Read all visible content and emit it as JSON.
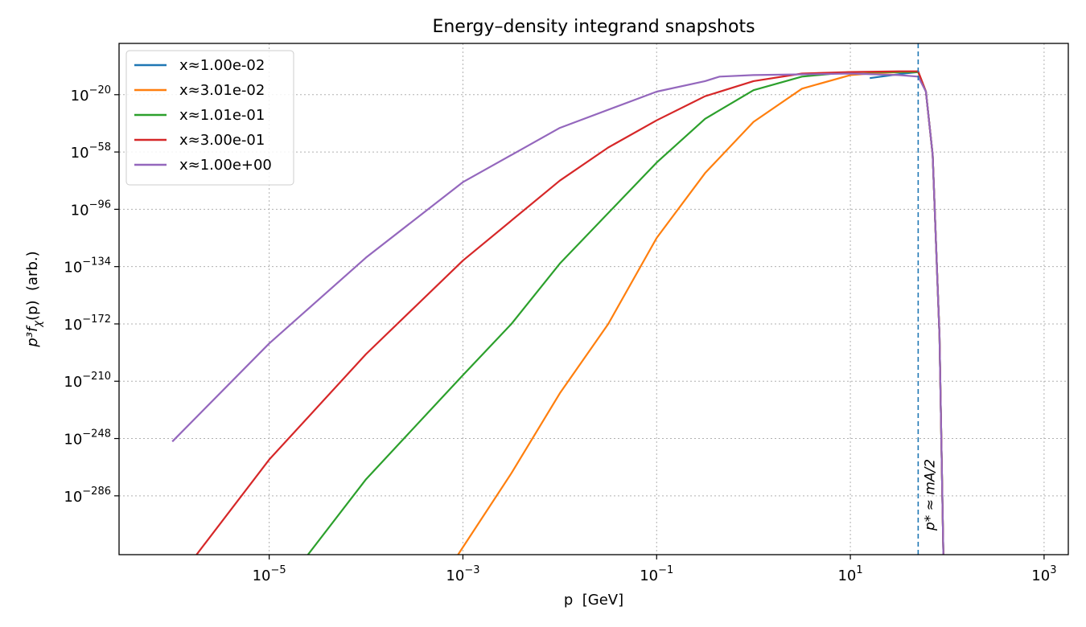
{
  "chart_data": {
    "type": "line",
    "title": "Energy–density integrand snapshots",
    "xlabel": "p  [GeV]",
    "ylabel_main": "p³f",
    "ylabel_sub": "χ",
    "ylabel_tail": "(p)  (arb.)",
    "xscale": "log",
    "yscale": "log",
    "x_log10_range": [
      -6.55,
      3.25
    ],
    "y_log10_range": [
      -325,
      14
    ],
    "grid": true,
    "legend_placement": "upper-left",
    "x_ticks": [
      {
        "base": "10",
        "exp": "−5",
        "log10": -5
      },
      {
        "base": "10",
        "exp": "−3",
        "log10": -3
      },
      {
        "base": "10",
        "exp": "−1",
        "log10": -1
      },
      {
        "base": "10",
        "exp": "1",
        "log10": 1
      },
      {
        "base": "10",
        "exp": "3",
        "log10": 3
      }
    ],
    "y_ticks": [
      {
        "base": "10",
        "exp": "−20",
        "log10": -20
      },
      {
        "base": "10",
        "exp": "−58",
        "log10": -58
      },
      {
        "base": "10",
        "exp": "−96",
        "log10": -96
      },
      {
        "base": "10",
        "exp": "−134",
        "log10": -134
      },
      {
        "base": "10",
        "exp": "−172",
        "log10": -172
      },
      {
        "base": "10",
        "exp": "−210",
        "log10": -210
      },
      {
        "base": "10",
        "exp": "−248",
        "log10": -248
      },
      {
        "base": "10",
        "exp": "−286",
        "log10": -286
      }
    ],
    "vline": {
      "log10_x": 1.7,
      "label": "p* ≈ mA/2",
      "color": "#1f77b4"
    },
    "series": [
      {
        "name": "x≈1.00e-02",
        "color": "#1f77b4",
        "points": [
          [
            1.2,
            -9
          ],
          [
            1.55,
            -6
          ],
          [
            1.7,
            -5
          ],
          [
            1.78,
            -18
          ],
          [
            1.85,
            -60
          ],
          [
            1.92,
            -180
          ],
          [
            1.96,
            -325
          ]
        ]
      },
      {
        "name": "x≈3.01e-02",
        "color": "#ff7f0e",
        "points": [
          [
            -3.05,
            -325
          ],
          [
            -2.5,
            -271
          ],
          [
            -2.0,
            -218
          ],
          [
            -1.5,
            -172
          ],
          [
            -1.0,
            -115
          ],
          [
            -0.5,
            -72
          ],
          [
            0.0,
            -38
          ],
          [
            0.5,
            -16
          ],
          [
            1.0,
            -7
          ],
          [
            1.3,
            -5.5
          ],
          [
            1.55,
            -5
          ],
          [
            1.7,
            -5
          ],
          [
            1.78,
            -18
          ],
          [
            1.85,
            -60
          ],
          [
            1.92,
            -180
          ],
          [
            1.96,
            -325
          ]
        ]
      },
      {
        "name": "x≈1.01e-01",
        "color": "#2ca02c",
        "points": [
          [
            -4.6,
            -325
          ],
          [
            -4.0,
            -275
          ],
          [
            -3.0,
            -206
          ],
          [
            -2.5,
            -172
          ],
          [
            -2.0,
            -132
          ],
          [
            -1.0,
            -65
          ],
          [
            -0.5,
            -36
          ],
          [
            0.0,
            -17
          ],
          [
            0.5,
            -8
          ],
          [
            1.0,
            -5
          ],
          [
            1.5,
            -5
          ],
          [
            1.7,
            -5
          ],
          [
            1.78,
            -18
          ],
          [
            1.85,
            -60
          ],
          [
            1.92,
            -180
          ],
          [
            1.96,
            -325
          ]
        ]
      },
      {
        "name": "x≈3.00e-01",
        "color": "#d62728",
        "points": [
          [
            -5.75,
            -325
          ],
          [
            -5.0,
            -262
          ],
          [
            -4.0,
            -192
          ],
          [
            -3.0,
            -130
          ],
          [
            -2.0,
            -77
          ],
          [
            -1.5,
            -55
          ],
          [
            -1.0,
            -37
          ],
          [
            -0.5,
            -21
          ],
          [
            0.0,
            -11
          ],
          [
            0.5,
            -6
          ],
          [
            1.0,
            -5
          ],
          [
            1.5,
            -4.5
          ],
          [
            1.7,
            -4.5
          ],
          [
            1.78,
            -18
          ],
          [
            1.85,
            -60
          ],
          [
            1.92,
            -180
          ],
          [
            1.96,
            -325
          ]
        ]
      },
      {
        "name": "x≈1.00e+00",
        "color": "#9467bd",
        "points": [
          [
            -6.0,
            -250
          ],
          [
            -5.0,
            -185
          ],
          [
            -4.0,
            -128
          ],
          [
            -3.0,
            -78
          ],
          [
            -2.0,
            -42
          ],
          [
            -1.0,
            -18
          ],
          [
            -0.5,
            -11
          ],
          [
            -0.35,
            -8
          ],
          [
            0.0,
            -7
          ],
          [
            0.5,
            -6.5
          ],
          [
            1.0,
            -6
          ],
          [
            1.5,
            -7
          ],
          [
            1.7,
            -8
          ],
          [
            1.78,
            -18
          ],
          [
            1.85,
            -60
          ],
          [
            1.92,
            -180
          ],
          [
            1.96,
            -325
          ]
        ]
      }
    ]
  }
}
